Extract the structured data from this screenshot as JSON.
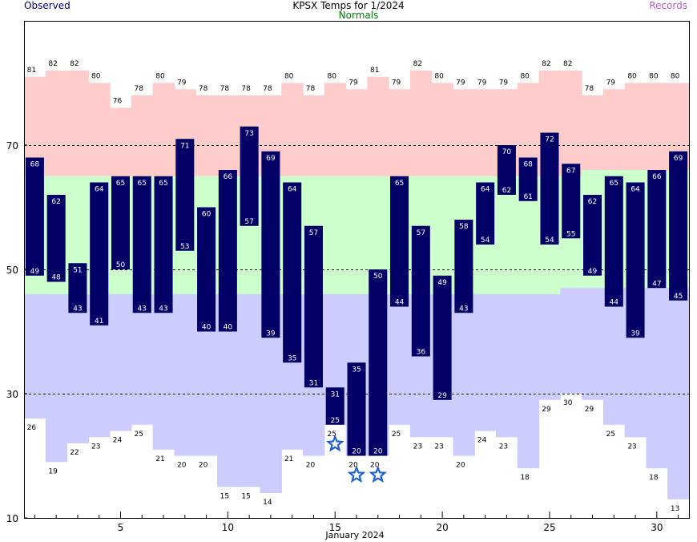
{
  "chart_data": {
    "type": "bar",
    "title": "KPSX Temps for 1/2024",
    "legend": {
      "observed": "Observed",
      "normals": "Normals",
      "records": "Records",
      "placement": "top"
    },
    "xlabel": "January 2024",
    "x_ticks": [
      5,
      10,
      15,
      20,
      25,
      30
    ],
    "y_ticks": [
      10,
      30,
      50,
      70
    ],
    "ylim": [
      10,
      90
    ],
    "xlim": [
      0.5,
      31.5
    ],
    "grid_lines_y": [
      30,
      50,
      70
    ],
    "colors": {
      "observed": "#000066",
      "observed_label": "#ffffff",
      "record_band": "#ffcccc",
      "normal_band": "#ccffcc",
      "low_band": "#ccccff",
      "star": "#1f5fd6"
    },
    "days": [
      1,
      2,
      3,
      4,
      5,
      6,
      7,
      8,
      9,
      10,
      11,
      12,
      13,
      14,
      15,
      16,
      17,
      18,
      19,
      20,
      21,
      22,
      23,
      24,
      25,
      26,
      27,
      28,
      29,
      30,
      31
    ],
    "observed_high": [
      68,
      62,
      51,
      64,
      65,
      65,
      65,
      71,
      60,
      66,
      73,
      69,
      64,
      57,
      31,
      35,
      50,
      65,
      57,
      49,
      58,
      64,
      70,
      68,
      72,
      67,
      62,
      65,
      64,
      66,
      69
    ],
    "observed_low": [
      49,
      48,
      43,
      41,
      50,
      43,
      43,
      53,
      40,
      40,
      57,
      39,
      35,
      31,
      25,
      20,
      20,
      44,
      36,
      29,
      43,
      54,
      62,
      61,
      54,
      55,
      49,
      44,
      39,
      47,
      45
    ],
    "normal_high": [
      65,
      65,
      65,
      65,
      65,
      65,
      65,
      65,
      65,
      65,
      65,
      65,
      65,
      65,
      65,
      65,
      65,
      65,
      65,
      65,
      65,
      65,
      65,
      65,
      65,
      65,
      66,
      66,
      66,
      66,
      66
    ],
    "normal_low": [
      46,
      46,
      46,
      46,
      46,
      46,
      46,
      46,
      46,
      46,
      46,
      46,
      46,
      46,
      46,
      46,
      46,
      46,
      46,
      46,
      46,
      46,
      46,
      46,
      46,
      47,
      47,
      47,
      47,
      47,
      47
    ],
    "record_high": [
      81,
      82,
      82,
      80,
      76,
      78,
      80,
      79,
      78,
      78,
      78,
      78,
      80,
      78,
      80,
      79,
      81,
      79,
      82,
      80,
      79,
      79,
      79,
      80,
      82,
      82,
      78,
      79,
      80,
      80,
      80
    ],
    "record_low": [
      26,
      19,
      22,
      23,
      24,
      25,
      21,
      20,
      20,
      15,
      15,
      14,
      21,
      20,
      25,
      20,
      20,
      25,
      23,
      23,
      20,
      24,
      23,
      18,
      29,
      30,
      29,
      25,
      23,
      18,
      13
    ],
    "record_low_tied": [
      15,
      16,
      17
    ]
  }
}
